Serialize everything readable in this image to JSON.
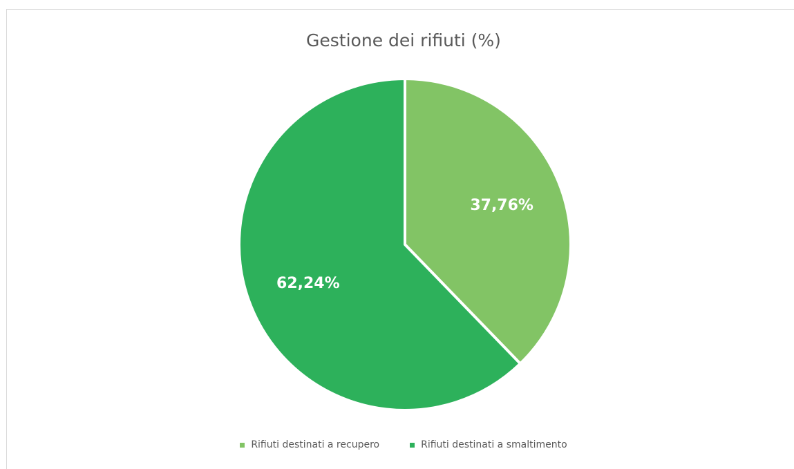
{
  "chart_data": {
    "type": "pie",
    "title": "Gestione dei rifiuti (%)",
    "categories": [
      "Rifiuti destinati a recupero",
      "Rifiuti destinati a smaltimento"
    ],
    "values": [
      37.76,
      62.24
    ],
    "data_labels": [
      "37,76%",
      "62,24%"
    ],
    "colors": [
      "#82c465",
      "#2db15b"
    ],
    "legend_position": "bottom"
  }
}
